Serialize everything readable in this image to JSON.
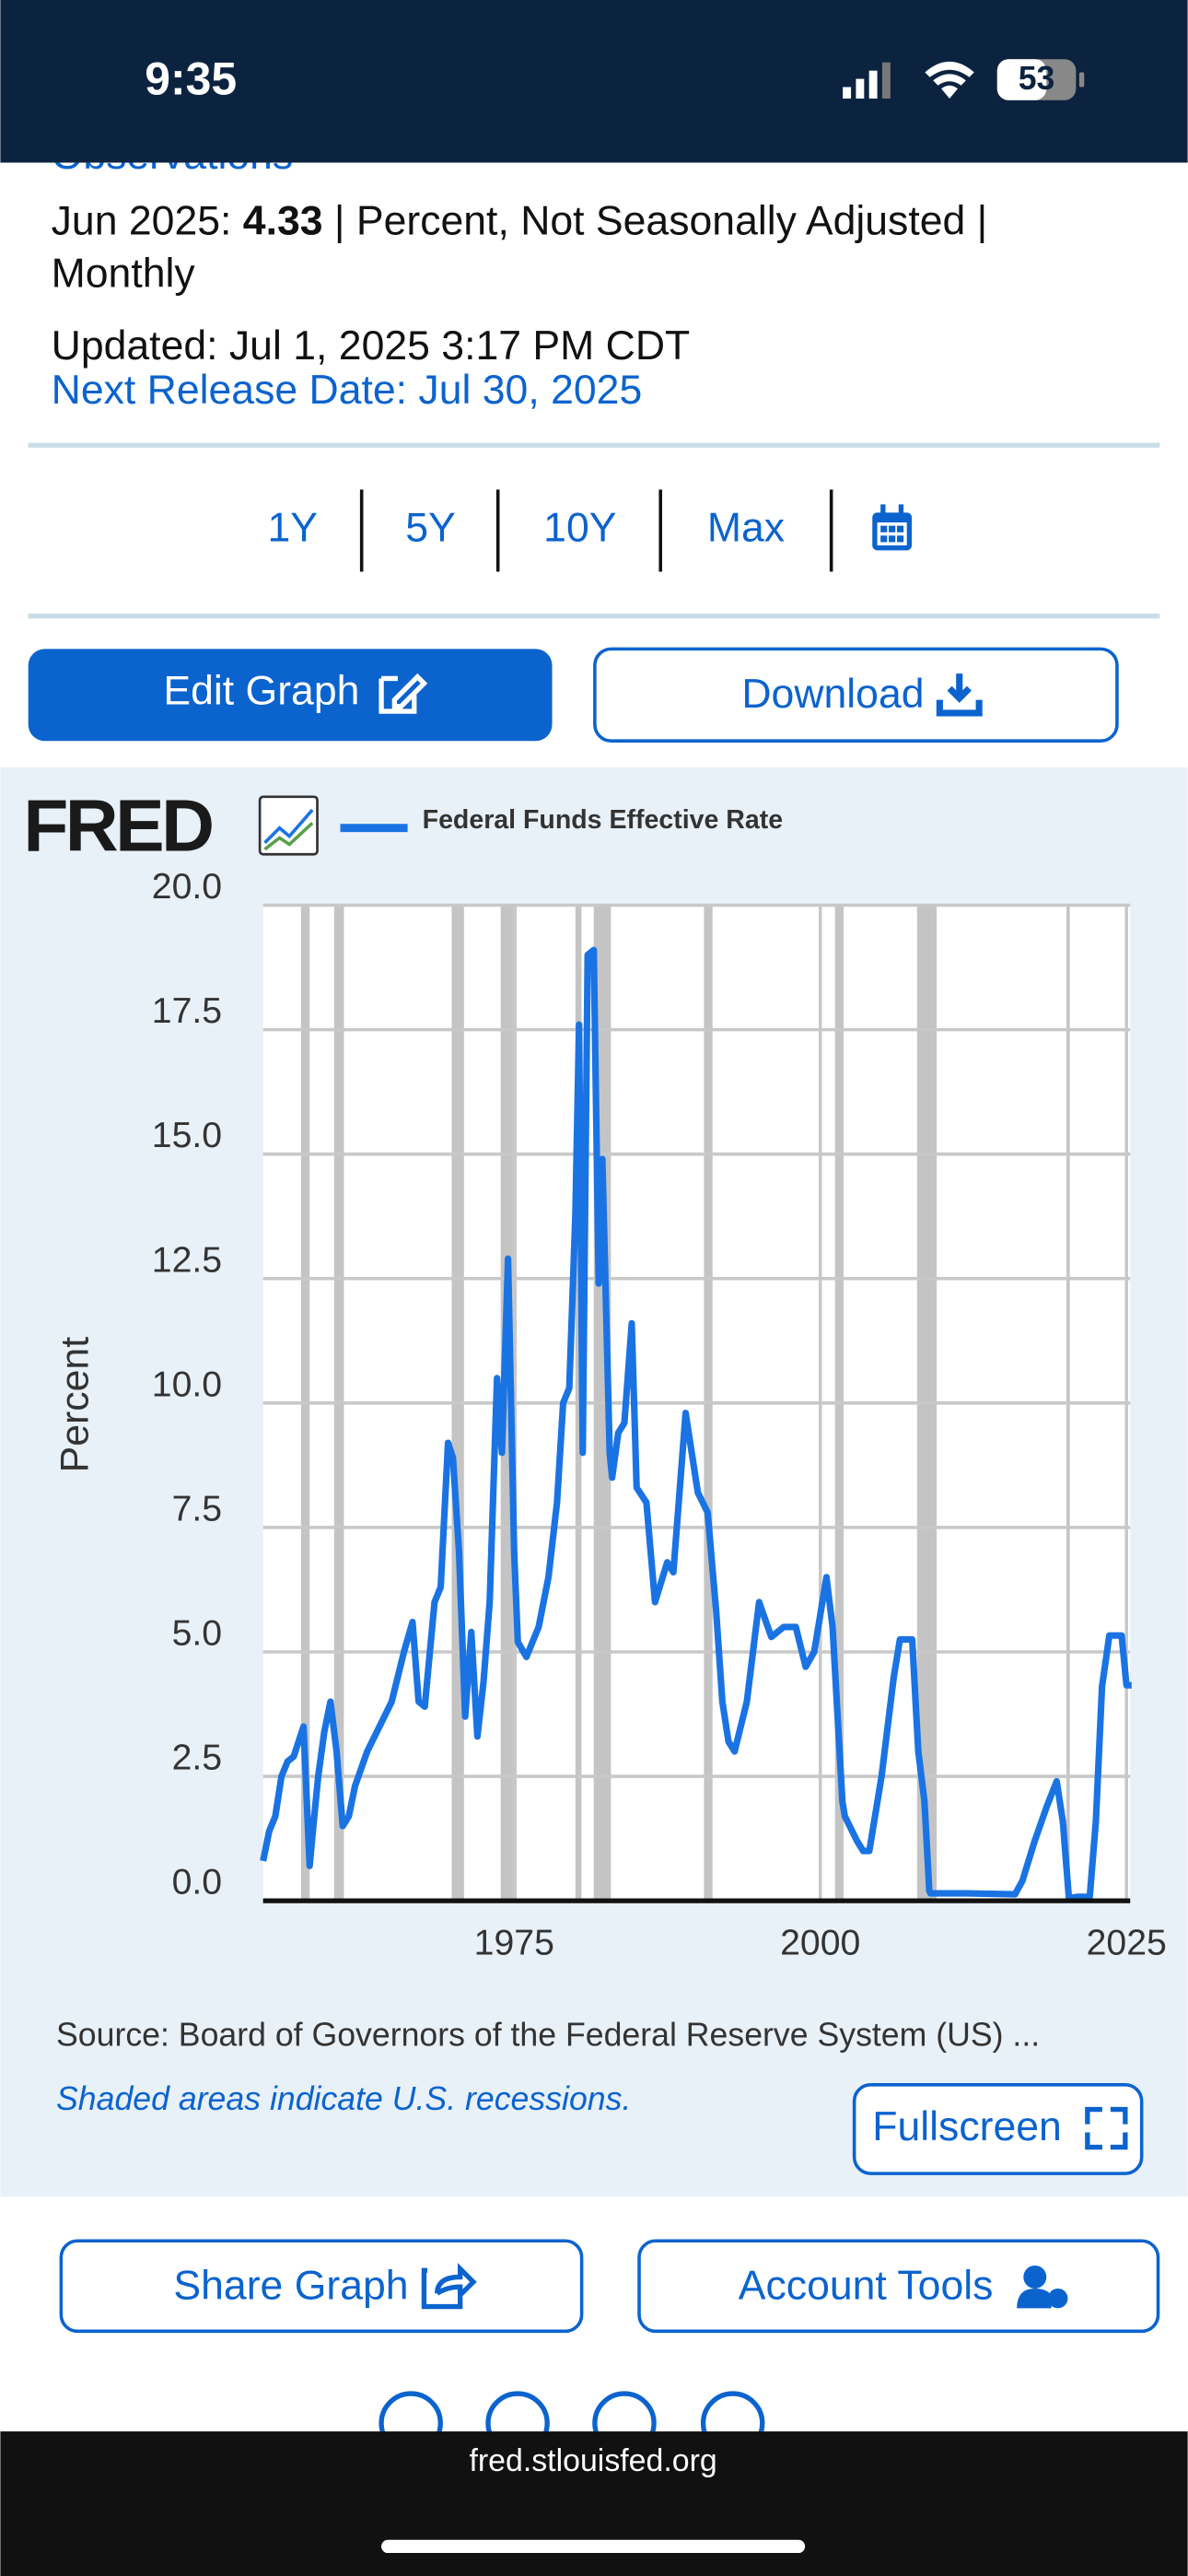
{
  "status_bar": {
    "time": "9:35",
    "battery": "53"
  },
  "header": {
    "section": "Observations",
    "date": "Jun 2025: ",
    "value": "4.33",
    "units": " | Percent, Not Seasonally Adjusted |",
    "frequency": "Monthly",
    "updated": "Updated: Jul 1, 2025 3:17 PM CDT",
    "next_release": "Next Release Date: Jul 30, 2025"
  },
  "ranges": [
    "1Y",
    "5Y",
    "10Y",
    "Max"
  ],
  "actions": {
    "edit": "Edit Graph",
    "download": "Download"
  },
  "chart_data": {
    "type": "line",
    "logo": "FRED",
    "ylabel": "Percent",
    "grid": true,
    "x": [
      1954.5,
      1955,
      1955.5,
      1956,
      1956.5,
      1957,
      1957.8,
      1958.3,
      1958.6,
      1959,
      1959.5,
      1960,
      1960.5,
      1961,
      1961.5,
      1962,
      1963,
      1964,
      1965,
      1966,
      1966.7,
      1967.2,
      1967.7,
      1968.5,
      1969,
      1969.6,
      1970,
      1970.5,
      1971,
      1971.5,
      1972,
      1972.5,
      1973,
      1973.6,
      1974,
      1974.5,
      1975,
      1975.3,
      1976,
      1977,
      1977.8,
      1978.5,
      1979,
      1979.5,
      1980,
      1980.3,
      1980.6,
      1981,
      1981.5,
      1981.9,
      1982.2,
      1982.8,
      1983,
      1983.5,
      1984,
      1984.6,
      1985,
      1985.8,
      1986.5,
      1987,
      1987.5,
      1988,
      1989,
      1989.5,
      1990,
      1990.8,
      1991.5,
      1992,
      1992.5,
      1993,
      1994,
      1995,
      1996,
      1997,
      1998,
      1998.8,
      1999.5,
      2000.5,
      2001,
      2001.8,
      2002,
      2003,
      2003.5,
      2004,
      2005,
      2006,
      2006.5,
      2007.5,
      2008,
      2008.5,
      2008.9,
      2009,
      2012,
      2015.9,
      2016.5,
      2017.5,
      2018.5,
      2019.3,
      2019.8,
      2020.3,
      2021,
      2022,
      2022.5,
      2023,
      2023.6,
      2024.6,
      2025,
      2025.42
    ],
    "series": [
      {
        "name": "Federal Funds Effective Rate",
        "color": "#1a73e3",
        "values": [
          0.8,
          1.4,
          1.7,
          2.5,
          2.8,
          2.9,
          3.5,
          0.7,
          1.5,
          2.5,
          3.4,
          4.0,
          3.0,
          1.5,
          1.7,
          2.3,
          3.0,
          3.5,
          4.0,
          5.0,
          5.6,
          4.0,
          3.9,
          6.0,
          6.3,
          9.2,
          8.9,
          7.0,
          3.7,
          5.4,
          3.3,
          4.4,
          6.0,
          10.5,
          9.0,
          12.9,
          7.0,
          5.2,
          4.9,
          5.5,
          6.5,
          8.0,
          10.0,
          10.3,
          13.8,
          17.6,
          9.0,
          19.0,
          19.1,
          12.4,
          14.9,
          9.0,
          8.5,
          9.4,
          9.6,
          11.6,
          8.3,
          8.0,
          6.0,
          6.4,
          6.8,
          6.6,
          9.8,
          9.0,
          8.2,
          7.8,
          5.8,
          4.0,
          3.2,
          3.0,
          4.0,
          6.0,
          5.3,
          5.5,
          5.5,
          4.7,
          5.0,
          6.5,
          5.5,
          2.0,
          1.7,
          1.2,
          1.0,
          1.0,
          2.5,
          4.5,
          5.25,
          5.25,
          3.0,
          2.0,
          0.2,
          0.15,
          0.15,
          0.13,
          0.4,
          1.2,
          1.9,
          2.4,
          1.6,
          0.05,
          0.08,
          0.08,
          1.6,
          4.3,
          5.33,
          5.33,
          4.33,
          4.33
        ]
      }
    ],
    "xlim": [
      1954.5,
      2025.3
    ],
    "xticks": [
      1975,
      2000,
      2025
    ],
    "ylim": [
      0,
      20
    ],
    "yticks": [
      {
        "value": 0,
        "label": "0.0"
      },
      {
        "value": 2.5,
        "label": "2.5"
      },
      {
        "value": 5,
        "label": "5.0"
      },
      {
        "value": 7.5,
        "label": "7.5"
      },
      {
        "value": 10,
        "label": "10.0"
      },
      {
        "value": 12.5,
        "label": "12.5"
      },
      {
        "value": 15,
        "label": "15.0"
      },
      {
        "value": 17.5,
        "label": "17.5"
      },
      {
        "value": 20,
        "label": "20.0"
      }
    ],
    "recessions": [
      [
        1957.6,
        1958.3
      ],
      [
        1960.3,
        1961.1
      ],
      [
        1969.9,
        1970.9
      ],
      [
        1973.9,
        1975.2
      ],
      [
        1980.0,
        1980.5
      ],
      [
        1981.5,
        1982.9
      ],
      [
        1990.5,
        1991.2
      ],
      [
        2001.2,
        2001.9
      ],
      [
        2007.9,
        2009.5
      ],
      [
        2020.1,
        2020.3
      ]
    ],
    "recession_color": "#c4c4c4",
    "source": "Source: Board of Governors of the Federal Reserve System (US) ...",
    "note": "Shaded areas indicate U.S. recessions."
  },
  "chart_actions": {
    "fullscreen": "Fullscreen"
  },
  "share": {
    "share_graph": "Share Graph",
    "account_tools": "Account Tools"
  },
  "url": "fred.stlouisfed.org"
}
